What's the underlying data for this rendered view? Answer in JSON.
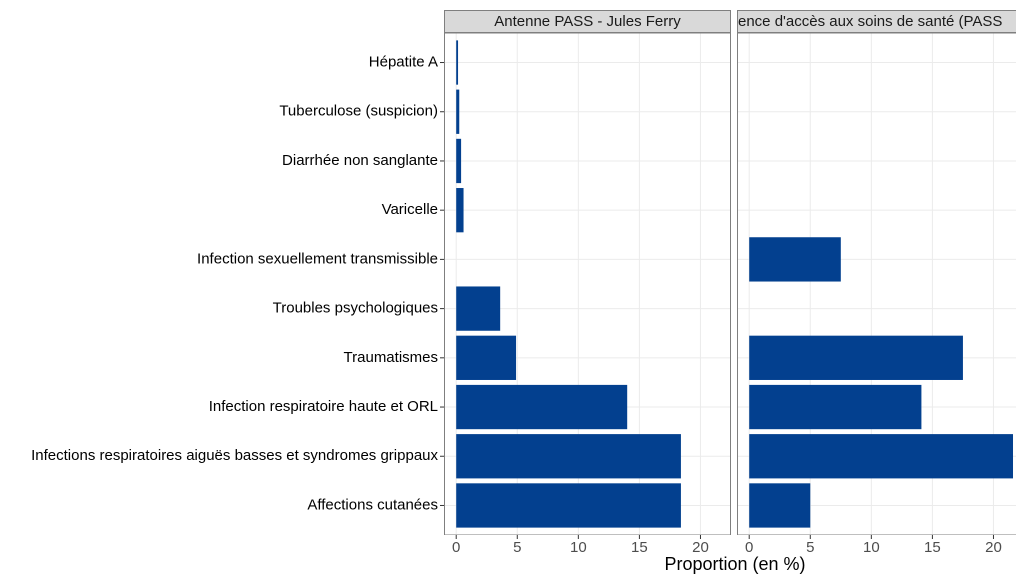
{
  "chart_data": {
    "type": "bar",
    "categories": [
      "Hépatite A",
      "Tuberculose (suspicion)",
      "Diarrhée non sanglante",
      "Varicelle",
      "Infection sexuellement transmissible",
      "Troubles psychologiques",
      "Traumatismes",
      "Infection respiratoire haute et ORL",
      "Infections respiratoires aiguës basses et syndromes grippaux",
      "Affections cutanées"
    ],
    "facets": [
      {
        "title": "Antenne PASS - Jules Ferry",
        "values": [
          0.15,
          0.25,
          0.4,
          0.6,
          null,
          3.6,
          4.9,
          14.0,
          18.4,
          18.4
        ]
      },
      {
        "title": "ence d'accès aux soins de santé (PASS",
        "values": [
          null,
          null,
          null,
          null,
          7.5,
          null,
          17.5,
          14.1,
          21.6,
          5.0
        ]
      }
    ],
    "xlabel": "Proportion (en %)",
    "xlim": [
      -1,
      22.5
    ],
    "xticks": [
      0,
      5,
      10,
      15,
      20
    ],
    "color": "#03408f",
    "grid": true
  }
}
